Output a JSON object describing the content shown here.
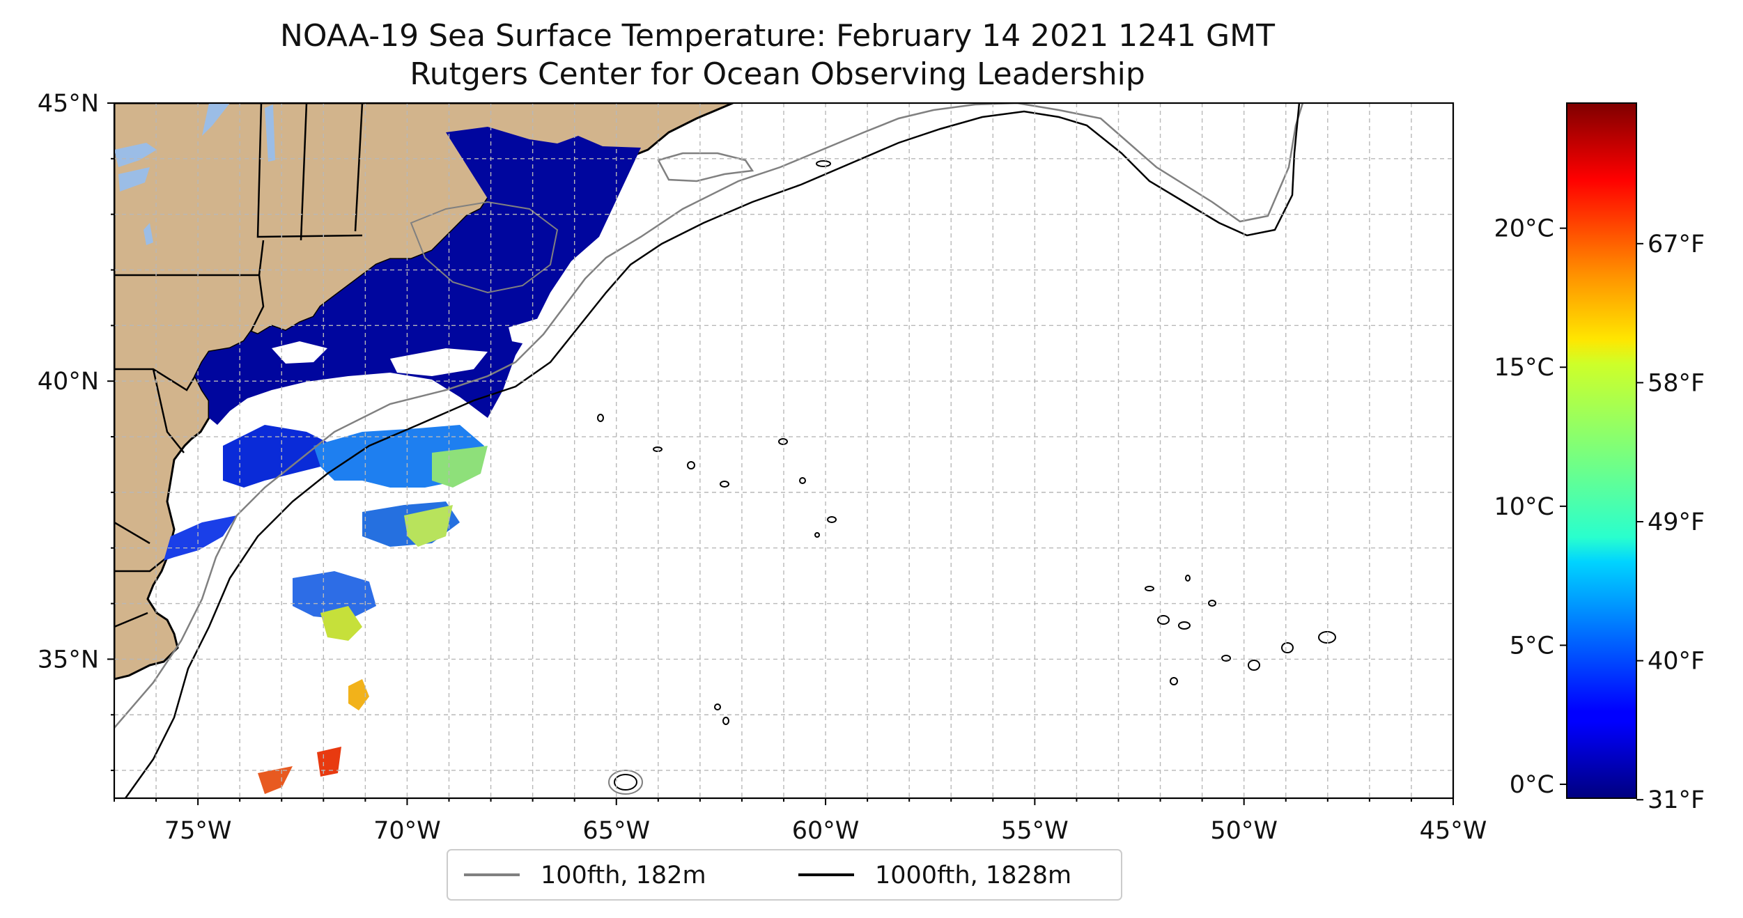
{
  "title": {
    "line1": "NOAA-19 Sea Surface Temperature: February 14 2021 1241 GMT",
    "line2": "Rutgers Center for Ocean Observing Leadership"
  },
  "map": {
    "projection": "plate carree",
    "lon_range": [
      -77,
      -45
    ],
    "lat_range": [
      32.5,
      45
    ],
    "gridlines": "dashed, grey",
    "land_color": "#d2b48c",
    "lake_color": "#9bbde6",
    "x_ticks": [
      "75°W",
      "70°W",
      "65°W",
      "60°W",
      "55°W",
      "50°W",
      "45°W"
    ],
    "y_ticks": [
      "35°N",
      "40°N",
      "45°N"
    ],
    "legend": {
      "placement": "bottom-center, below map",
      "items": [
        {
          "label": "100fth, 182m",
          "color": "#808080"
        },
        {
          "label": "1000fth, 1828m",
          "color": "#000000"
        }
      ]
    }
  },
  "colorbar": {
    "colormap": "jet",
    "range_c": [
      -0.5,
      24.5
    ],
    "celsius_ticks": [
      {
        "value": 0,
        "label": "0°C"
      },
      {
        "value": 5,
        "label": "5°C"
      },
      {
        "value": 10,
        "label": "10°C"
      },
      {
        "value": 15,
        "label": "15°C"
      },
      {
        "value": 20,
        "label": "20°C"
      }
    ],
    "fahrenheit_ticks": [
      {
        "value_f": 31,
        "label": "31°F"
      },
      {
        "value_f": 40,
        "label": "40°F"
      },
      {
        "value_f": 49,
        "label": "49°F"
      },
      {
        "value_f": 58,
        "label": "58°F"
      },
      {
        "value_f": 67,
        "label": "67°F"
      }
    ]
  }
}
